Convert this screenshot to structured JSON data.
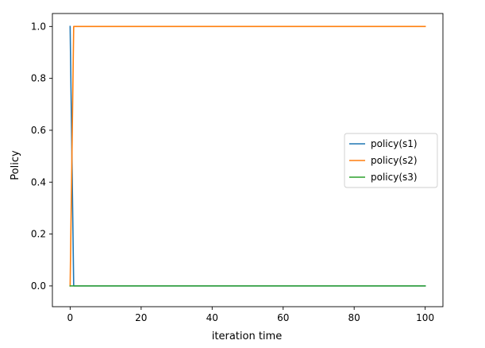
{
  "chart_data": {
    "type": "line",
    "title": "",
    "xlabel": "iteration time",
    "ylabel": "Policy",
    "xlim": [
      -5,
      105
    ],
    "ylim": [
      -0.08,
      1.05
    ],
    "xticks": [
      0,
      20,
      40,
      60,
      80,
      100
    ],
    "yticks": [
      0.0,
      0.2,
      0.4,
      0.6,
      0.8,
      1.0
    ],
    "xtick_labels": [
      "0",
      "20",
      "40",
      "60",
      "80",
      "100"
    ],
    "ytick_labels": [
      "0.0",
      "0.2",
      "0.4",
      "0.6",
      "0.8",
      "1.0"
    ],
    "grid": false,
    "legend_position": "center-right",
    "series": [
      {
        "name": "policy(s1)",
        "color": "#1f77b4",
        "points": [
          [
            0,
            1.0
          ],
          [
            1,
            0.0
          ],
          [
            100,
            0.0
          ]
        ]
      },
      {
        "name": "policy(s2)",
        "color": "#ff7f0e",
        "points": [
          [
            0,
            0.0
          ],
          [
            1,
            1.0
          ],
          [
            100,
            1.0
          ]
        ]
      },
      {
        "name": "policy(s3)",
        "color": "#2ca02c",
        "points": [
          [
            0,
            0.0
          ],
          [
            1,
            0.0
          ],
          [
            100,
            0.0
          ]
        ]
      }
    ]
  }
}
